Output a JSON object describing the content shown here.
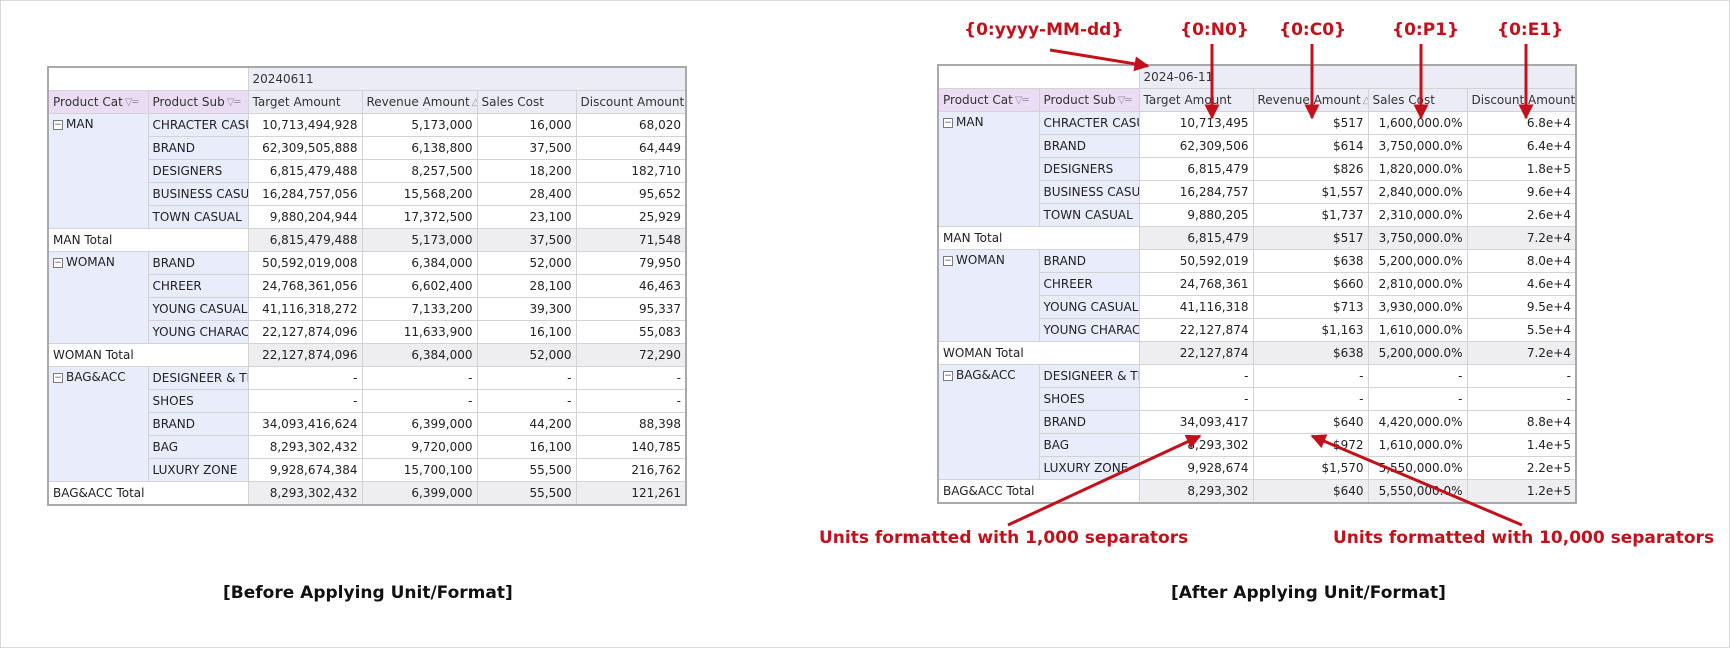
{
  "captions": {
    "before": "[Before Applying Unit/Format]",
    "after": "[After Applying Unit/Format]"
  },
  "annotations": {
    "date_format": "{0:yyyy-MM-dd}",
    "n0_format": "{0:N0}",
    "c0_format": "{0:C0}",
    "p1_format": "{0:P1}",
    "e1_format": "{0:E1}",
    "thousand_note": "Units formatted with 1,000 separators",
    "tenthousand_note": "Units formatted with 10,000 separators"
  },
  "colors": {
    "annotation": "#c2111a"
  },
  "before": {
    "date": "20240611",
    "headers": {
      "cat": "Product Cat",
      "sub": "Product Sub",
      "target": "Target Amount",
      "revenue": "Revenue Amount",
      "cost": "Sales Cost",
      "discount": "Discount Amount"
    },
    "groups": [
      {
        "cat": "MAN",
        "rows": [
          {
            "sub": "CHRACTER CASU",
            "target": "10,713,494,928",
            "revenue": "5,173,000",
            "cost": "16,000",
            "discount": "68,020"
          },
          {
            "sub": "BRAND",
            "target": "62,309,505,888",
            "revenue": "6,138,800",
            "cost": "37,500",
            "discount": "64,449"
          },
          {
            "sub": "DESIGNERS",
            "target": "6,815,479,488",
            "revenue": "8,257,500",
            "cost": "18,200",
            "discount": "182,710"
          },
          {
            "sub": "BUSINESS CASU",
            "target": "16,284,757,056",
            "revenue": "15,568,200",
            "cost": "28,400",
            "discount": "95,652"
          },
          {
            "sub": "TOWN CASUAL",
            "target": "9,880,204,944",
            "revenue": "17,372,500",
            "cost": "23,100",
            "discount": "25,929"
          }
        ],
        "total": {
          "label": "MAN Total",
          "target": "6,815,479,488",
          "revenue": "5,173,000",
          "cost": "37,500",
          "discount": "71,548"
        }
      },
      {
        "cat": "WOMAN",
        "rows": [
          {
            "sub": "BRAND",
            "target": "50,592,019,008",
            "revenue": "6,384,000",
            "cost": "52,000",
            "discount": "79,950"
          },
          {
            "sub": "CHREER",
            "target": "24,768,361,056",
            "revenue": "6,602,400",
            "cost": "28,100",
            "discount": "46,463"
          },
          {
            "sub": "YOUNG CASUAL",
            "target": "41,116,318,272",
            "revenue": "7,133,200",
            "cost": "39,300",
            "discount": "95,337"
          },
          {
            "sub": "YOUNG CHARAC",
            "target": "22,127,874,096",
            "revenue": "11,633,900",
            "cost": "16,100",
            "discount": "55,083"
          }
        ],
        "total": {
          "label": "WOMAN Total",
          "target": "22,127,874,096",
          "revenue": "6,384,000",
          "cost": "52,000",
          "discount": "72,290"
        }
      },
      {
        "cat": "BAG&ACC",
        "rows": [
          {
            "sub": "DESIGNEER & TR",
            "target": "-",
            "revenue": "-",
            "cost": "-",
            "discount": "-"
          },
          {
            "sub": "SHOES",
            "target": "-",
            "revenue": "-",
            "cost": "-",
            "discount": "-"
          },
          {
            "sub": "BRAND",
            "target": "34,093,416,624",
            "revenue": "6,399,000",
            "cost": "44,200",
            "discount": "88,398"
          },
          {
            "sub": "BAG",
            "target": "8,293,302,432",
            "revenue": "9,720,000",
            "cost": "16,100",
            "discount": "140,785"
          },
          {
            "sub": "LUXURY ZONE",
            "target": "9,928,674,384",
            "revenue": "15,700,100",
            "cost": "55,500",
            "discount": "216,762"
          }
        ],
        "total": {
          "label": "BAG&ACC Total",
          "target": "8,293,302,432",
          "revenue": "6,399,000",
          "cost": "55,500",
          "discount": "121,261"
        }
      }
    ]
  },
  "after": {
    "date": "2024-06-11",
    "headers": {
      "cat": "Product Cat",
      "sub": "Product Sub",
      "target": "Target Amount",
      "revenue": "Revenue Amount",
      "cost": "Sales Cost",
      "discount": "Discount Amount"
    },
    "groups": [
      {
        "cat": "MAN",
        "rows": [
          {
            "sub": "CHRACTER CASU",
            "target": "10,713,495",
            "revenue": "$517",
            "cost": "1,600,000.0%",
            "discount": "6.8e+4"
          },
          {
            "sub": "BRAND",
            "target": "62,309,506",
            "revenue": "$614",
            "cost": "3,750,000.0%",
            "discount": "6.4e+4"
          },
          {
            "sub": "DESIGNERS",
            "target": "6,815,479",
            "revenue": "$826",
            "cost": "1,820,000.0%",
            "discount": "1.8e+5"
          },
          {
            "sub": "BUSINESS CASU",
            "target": "16,284,757",
            "revenue": "$1,557",
            "cost": "2,840,000.0%",
            "discount": "9.6e+4"
          },
          {
            "sub": "TOWN CASUAL",
            "target": "9,880,205",
            "revenue": "$1,737",
            "cost": "2,310,000.0%",
            "discount": "2.6e+4"
          }
        ],
        "total": {
          "label": "MAN Total",
          "target": "6,815,479",
          "revenue": "$517",
          "cost": "3,750,000.0%",
          "discount": "7.2e+4"
        }
      },
      {
        "cat": "WOMAN",
        "rows": [
          {
            "sub": "BRAND",
            "target": "50,592,019",
            "revenue": "$638",
            "cost": "5,200,000.0%",
            "discount": "8.0e+4"
          },
          {
            "sub": "CHREER",
            "target": "24,768,361",
            "revenue": "$660",
            "cost": "2,810,000.0%",
            "discount": "4.6e+4"
          },
          {
            "sub": "YOUNG CASUAL",
            "target": "41,116,318",
            "revenue": "$713",
            "cost": "3,930,000.0%",
            "discount": "9.5e+4"
          },
          {
            "sub": "YOUNG CHARAC",
            "target": "22,127,874",
            "revenue": "$1,163",
            "cost": "1,610,000.0%",
            "discount": "5.5e+4"
          }
        ],
        "total": {
          "label": "WOMAN Total",
          "target": "22,127,874",
          "revenue": "$638",
          "cost": "5,200,000.0%",
          "discount": "7.2e+4"
        }
      },
      {
        "cat": "BAG&ACC",
        "rows": [
          {
            "sub": "DESIGNEER & TR",
            "target": "-",
            "revenue": "-",
            "cost": "-",
            "discount": "-"
          },
          {
            "sub": "SHOES",
            "target": "-",
            "revenue": "-",
            "cost": "-",
            "discount": "-"
          },
          {
            "sub": "BRAND",
            "target": "34,093,417",
            "revenue": "$640",
            "cost": "4,420,000.0%",
            "discount": "8.8e+4"
          },
          {
            "sub": "BAG",
            "target": "8,293,302",
            "revenue": "$972",
            "cost": "1,610,000.0%",
            "discount": "1.4e+5"
          },
          {
            "sub": "LUXURY ZONE",
            "target": "9,928,674",
            "revenue": "$1,570",
            "cost": "5,550,000.0%",
            "discount": "2.2e+5"
          }
        ],
        "total": {
          "label": "BAG&ACC Total",
          "target": "8,293,302",
          "revenue": "$640",
          "cost": "5,550,000.0%",
          "discount": "1.2e+5"
        }
      }
    ]
  }
}
